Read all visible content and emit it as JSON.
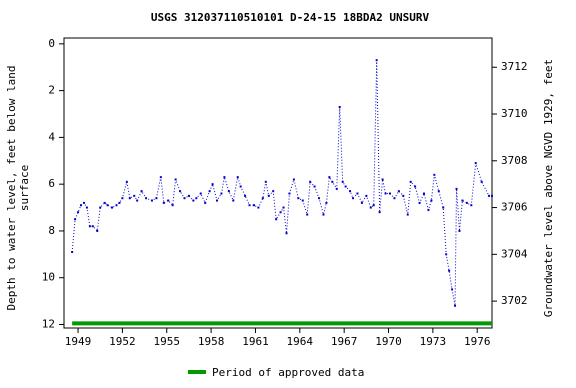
{
  "chart_data": {
    "type": "line",
    "title": "USGS 312037110510101 D-24-15 18BDA2 UNSURV",
    "ylabel": [
      "Depth to water level, feet below land",
      "surface"
    ],
    "y2label": "Groundwater level above NGVD 1929, feet",
    "xlim": [
      1948.05,
      1977.0
    ],
    "xticks": [
      1949,
      1952,
      1955,
      1958,
      1961,
      1964,
      1967,
      1970,
      1973,
      1976
    ],
    "ylim": [
      -0.25,
      12.15
    ],
    "yticks": [
      0,
      2,
      4,
      6,
      8,
      10,
      12
    ],
    "y2lim": [
      3713.25,
      3700.85
    ],
    "y2ticks": [
      3702,
      3704,
      3706,
      3708,
      3710,
      3712
    ],
    "series": [
      {
        "name": "Depth to water level",
        "color": "#0000cc",
        "x": [
          1948.6,
          1948.8,
          1949.0,
          1949.2,
          1949.4,
          1949.6,
          1949.8,
          1950.0,
          1950.3,
          1950.5,
          1950.8,
          1951.0,
          1951.3,
          1951.6,
          1951.8,
          1952.0,
          1952.3,
          1952.5,
          1952.8,
          1953.0,
          1953.3,
          1953.6,
          1954.0,
          1954.3,
          1954.6,
          1954.8,
          1955.1,
          1955.4,
          1955.6,
          1955.9,
          1956.2,
          1956.5,
          1956.8,
          1957.0,
          1957.3,
          1957.6,
          1957.9,
          1958.1,
          1958.4,
          1958.7,
          1958.9,
          1959.2,
          1959.5,
          1959.8,
          1960.0,
          1960.3,
          1960.6,
          1960.9,
          1961.2,
          1961.5,
          1961.7,
          1961.9,
          1962.2,
          1962.4,
          1962.7,
          1962.9,
          1963.1,
          1963.3,
          1963.6,
          1963.9,
          1964.2,
          1964.5,
          1964.7,
          1965.0,
          1965.3,
          1965.6,
          1965.8,
          1966.0,
          1966.2,
          1966.5,
          1966.7,
          1966.9,
          1967.1,
          1967.4,
          1967.6,
          1967.9,
          1968.2,
          1968.5,
          1968.8,
          1969.0,
          1969.2,
          1969.4,
          1969.6,
          1969.8,
          1970.1,
          1970.4,
          1970.7,
          1971.0,
          1971.3,
          1971.5,
          1971.8,
          1972.1,
          1972.4,
          1972.7,
          1972.9,
          1973.1,
          1973.4,
          1973.7,
          1973.9,
          1974.1,
          1974.3,
          1974.5,
          1974.6,
          1974.8,
          1975.0,
          1975.3,
          1975.6,
          1975.9,
          1976.3,
          1976.8,
          1977.0
        ],
        "values": [
          8.9,
          7.5,
          7.2,
          6.9,
          6.8,
          7.0,
          7.8,
          7.8,
          8.0,
          7.0,
          6.8,
          6.9,
          7.0,
          6.9,
          6.8,
          6.6,
          5.9,
          6.6,
          6.5,
          6.7,
          6.3,
          6.6,
          6.7,
          6.6,
          5.7,
          6.8,
          6.7,
          6.9,
          5.8,
          6.3,
          6.6,
          6.5,
          6.7,
          6.6,
          6.4,
          6.8,
          6.3,
          6.0,
          6.7,
          6.4,
          5.7,
          6.3,
          6.7,
          5.7,
          6.1,
          6.5,
          6.9,
          6.9,
          7.0,
          6.6,
          5.9,
          6.5,
          6.3,
          7.5,
          7.2,
          7.0,
          8.1,
          6.4,
          5.8,
          6.6,
          6.7,
          7.3,
          5.9,
          6.1,
          6.6,
          7.3,
          6.8,
          5.7,
          5.9,
          6.2,
          2.7,
          5.9,
          6.1,
          6.3,
          6.6,
          6.4,
          6.8,
          6.5,
          7.0,
          6.9,
          0.7,
          7.2,
          5.8,
          6.4,
          6.4,
          6.6,
          6.3,
          6.5,
          7.3,
          5.9,
          6.1,
          6.8,
          6.4,
          7.1,
          6.7,
          5.6,
          6.3,
          7.0,
          9.0,
          9.7,
          10.5,
          11.2,
          6.2,
          8.0,
          6.7,
          6.8,
          6.9,
          5.1,
          5.9,
          6.5,
          6.5
        ]
      }
    ],
    "approved_period": {
      "name": "Period of approved data",
      "color": "#009900",
      "start": 1948.6,
      "end": 1977.0,
      "depth": 11.95
    }
  }
}
